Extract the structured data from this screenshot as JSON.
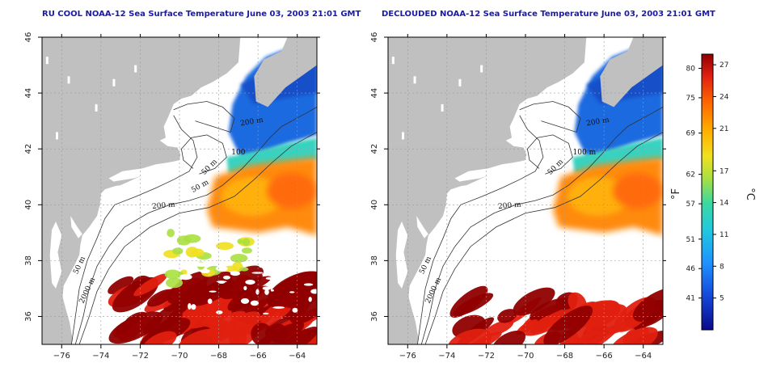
{
  "panels": [
    {
      "id": "left",
      "title": "RU COOL NOAA-12 Sea Surface Temperature June 03, 2003 21:01 GMT",
      "contour_labels": [
        "200 m",
        "100",
        "50 m",
        "50 m",
        "200 m",
        "50 m",
        "2000 m"
      ],
      "clouds": true
    },
    {
      "id": "right",
      "title": "DECLOUDED NOAA-12 Sea Surface Temperature June 03, 2003 21:01 GMT",
      "contour_labels": [
        "200 m",
        "100 m",
        "50 m",
        "200 m",
        "50 m",
        "2000 m"
      ],
      "clouds": false
    }
  ],
  "axes": {
    "lon_ticks": [
      -76,
      -74,
      -72,
      -70,
      -68,
      -66,
      -64
    ],
    "lat_ticks": [
      36,
      38,
      40,
      42,
      44,
      46
    ],
    "lon_range": [
      -77,
      -63
    ],
    "lat_range": [
      35,
      46
    ]
  },
  "colorbar": {
    "fahrenheit_label": "°F",
    "celsius_label": "°C",
    "fahrenheit_ticks": [
      "80",
      "75",
      "69",
      "62",
      "57",
      "51",
      "46",
      "41"
    ],
    "celsius_ticks": [
      "27",
      "24",
      "21",
      "17",
      "14",
      "11",
      "8",
      "5"
    ],
    "range_c": [
      2,
      28
    ]
  },
  "colors": {
    "land": "#c0c0c0",
    "ocean": "#ffffff",
    "cloud": "#ffffff",
    "title": "#1a1aa8"
  }
}
